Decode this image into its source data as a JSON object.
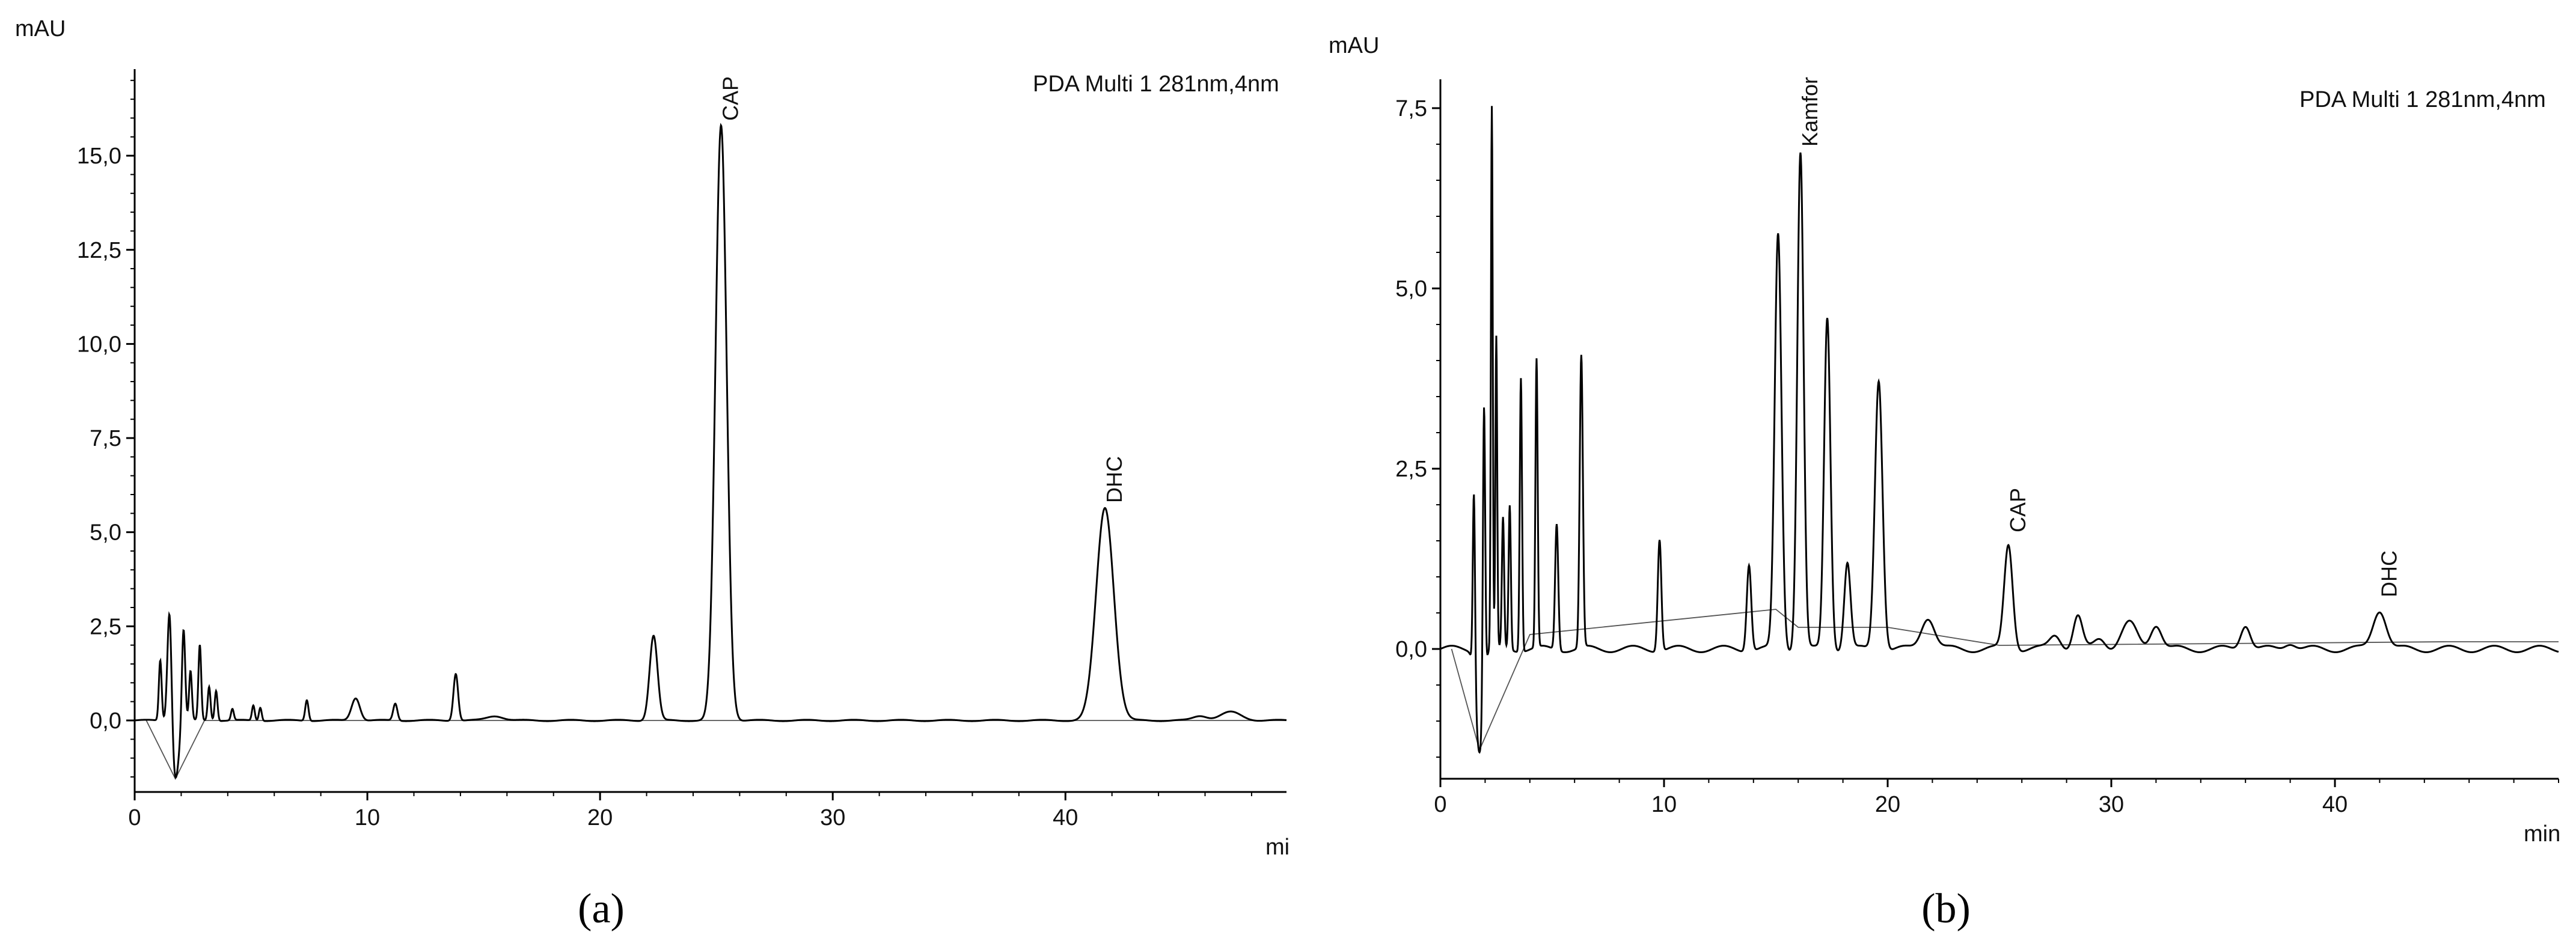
{
  "chart_data": [
    {
      "panel": "(a)",
      "type": "line",
      "ylabel": "mAU",
      "xlabel": "mi",
      "legend_text": "PDA Multi 1 281nm,4nm",
      "xlim": [
        0,
        49.5
      ],
      "ylim": [
        -1.9,
        17.3
      ],
      "x_ticks": [
        0,
        10,
        20,
        30,
        40
      ],
      "x_tick_labels": [
        "0",
        "10",
        "20",
        "30",
        "40"
      ],
      "y_ticks": [
        0,
        2.5,
        5,
        7.5,
        10,
        12.5,
        15
      ],
      "y_tick_labels": [
        "0,0",
        "2,5",
        "5,0",
        "7,5",
        "10,0",
        "12,5",
        "15,0"
      ],
      "baseline": 0,
      "dips": [
        {
          "x": 1.75,
          "depth": -1.55,
          "width": 0.15
        }
      ],
      "peaks": [
        {
          "x": 1.1,
          "height": 1.6,
          "width": 0.06
        },
        {
          "x": 1.5,
          "height": 3.2,
          "width": 0.09
        },
        {
          "x": 2.1,
          "height": 2.5,
          "width": 0.07
        },
        {
          "x": 2.4,
          "height": 1.3,
          "width": 0.06
        },
        {
          "x": 2.8,
          "height": 2.0,
          "width": 0.06
        },
        {
          "x": 3.2,
          "height": 0.9,
          "width": 0.06
        },
        {
          "x": 3.5,
          "height": 0.8,
          "width": 0.06
        },
        {
          "x": 4.2,
          "height": 0.3,
          "width": 0.06
        },
        {
          "x": 5.1,
          "height": 0.4,
          "width": 0.06
        },
        {
          "x": 5.4,
          "height": 0.35,
          "width": 0.06
        },
        {
          "x": 7.4,
          "height": 0.55,
          "width": 0.07
        },
        {
          "x": 9.5,
          "height": 0.6,
          "width": 0.18
        },
        {
          "x": 11.2,
          "height": 0.45,
          "width": 0.09
        },
        {
          "x": 13.8,
          "height": 1.25,
          "width": 0.1
        },
        {
          "x": 15.5,
          "height": 0.12,
          "width": 0.35
        },
        {
          "x": 22.3,
          "height": 2.25,
          "width": 0.17
        },
        {
          "x": 25.2,
          "height": 15.8,
          "width": 0.24
        },
        {
          "x": 41.7,
          "height": 5.65,
          "width": 0.38
        },
        {
          "x": 45.8,
          "height": 0.12,
          "width": 0.3
        },
        {
          "x": 47.1,
          "height": 0.22,
          "width": 0.45
        }
      ],
      "annotations": [
        {
          "text": "CAP",
          "x": 25.2,
          "y": 15.8
        },
        {
          "text": "DHC",
          "x": 41.7,
          "y": 5.65
        }
      ],
      "integration_baseline": [
        [
          0.5,
          0
        ],
        [
          1.75,
          -1.55
        ],
        [
          3.0,
          0
        ],
        [
          49.5,
          0
        ]
      ]
    },
    {
      "panel": "(b)",
      "type": "line",
      "ylabel": "mAU",
      "xlabel": "min",
      "legend_text": "PDA Multi 1 281nm,4nm",
      "xlim": [
        0,
        50
      ],
      "ylim": [
        -1.8,
        7.9
      ],
      "x_ticks": [
        0,
        10,
        20,
        30,
        40
      ],
      "x_tick_labels": [
        "0",
        "10",
        "20",
        "30",
        "40"
      ],
      "y_ticks": [
        0,
        2.5,
        5,
        7.5
      ],
      "y_tick_labels": [
        "0,0",
        "2,5",
        "5,0",
        "7,5"
      ],
      "baseline": 0,
      "dips": [
        {
          "x": 1.75,
          "depth": -1.4,
          "width": 0.16
        }
      ],
      "peaks": [
        {
          "x": 1.5,
          "height": 2.6,
          "width": 0.05
        },
        {
          "x": 1.95,
          "height": 4.0,
          "width": 0.05
        },
        {
          "x": 2.3,
          "height": 7.5,
          "width": 0.04
        },
        {
          "x": 2.5,
          "height": 4.3,
          "width": 0.04
        },
        {
          "x": 2.8,
          "height": 1.8,
          "width": 0.05
        },
        {
          "x": 3.1,
          "height": 2.0,
          "width": 0.05
        },
        {
          "x": 3.6,
          "height": 3.8,
          "width": 0.05
        },
        {
          "x": 4.3,
          "height": 4.0,
          "width": 0.05
        },
        {
          "x": 5.2,
          "height": 1.75,
          "width": 0.07
        },
        {
          "x": 6.3,
          "height": 4.05,
          "width": 0.07
        },
        {
          "x": 9.8,
          "height": 1.55,
          "width": 0.08
        },
        {
          "x": 13.8,
          "height": 1.2,
          "width": 0.1
        },
        {
          "x": 15.1,
          "height": 5.75,
          "width": 0.15
        },
        {
          "x": 16.1,
          "height": 6.9,
          "width": 0.14
        },
        {
          "x": 17.3,
          "height": 4.6,
          "width": 0.14
        },
        {
          "x": 18.2,
          "height": 1.2,
          "width": 0.14
        },
        {
          "x": 19.6,
          "height": 3.75,
          "width": 0.17
        },
        {
          "x": 21.8,
          "height": 0.45,
          "width": 0.3
        },
        {
          "x": 25.4,
          "height": 1.45,
          "width": 0.19
        },
        {
          "x": 27.5,
          "height": 0.2,
          "width": 0.25
        },
        {
          "x": 28.5,
          "height": 0.45,
          "width": 0.2
        },
        {
          "x": 29.5,
          "height": 0.15,
          "width": 0.25
        },
        {
          "x": 30.8,
          "height": 0.35,
          "width": 0.35
        },
        {
          "x": 32.0,
          "height": 0.35,
          "width": 0.25
        },
        {
          "x": 36.0,
          "height": 0.35,
          "width": 0.22
        },
        {
          "x": 38.0,
          "height": 0.1,
          "width": 0.25
        },
        {
          "x": 42.0,
          "height": 0.55,
          "width": 0.3
        }
      ],
      "annotations": [
        {
          "text": "Kamfor",
          "x": 16.1,
          "y": 6.9
        },
        {
          "text": "CAP",
          "x": 25.4,
          "y": 1.55
        },
        {
          "text": "DHC",
          "x": 42.0,
          "y": 0.65
        }
      ],
      "integration_baseline": [
        [
          0.5,
          0
        ],
        [
          1.75,
          -1.4
        ],
        [
          4.0,
          0.2
        ],
        [
          15.0,
          0.55
        ],
        [
          16.0,
          0.3
        ],
        [
          20.0,
          0.3
        ],
        [
          25.0,
          0.05
        ],
        [
          45.0,
          0.1
        ],
        [
          50.0,
          0.1
        ]
      ]
    }
  ],
  "captions": {
    "a": "(a)",
    "b": "(b)"
  }
}
